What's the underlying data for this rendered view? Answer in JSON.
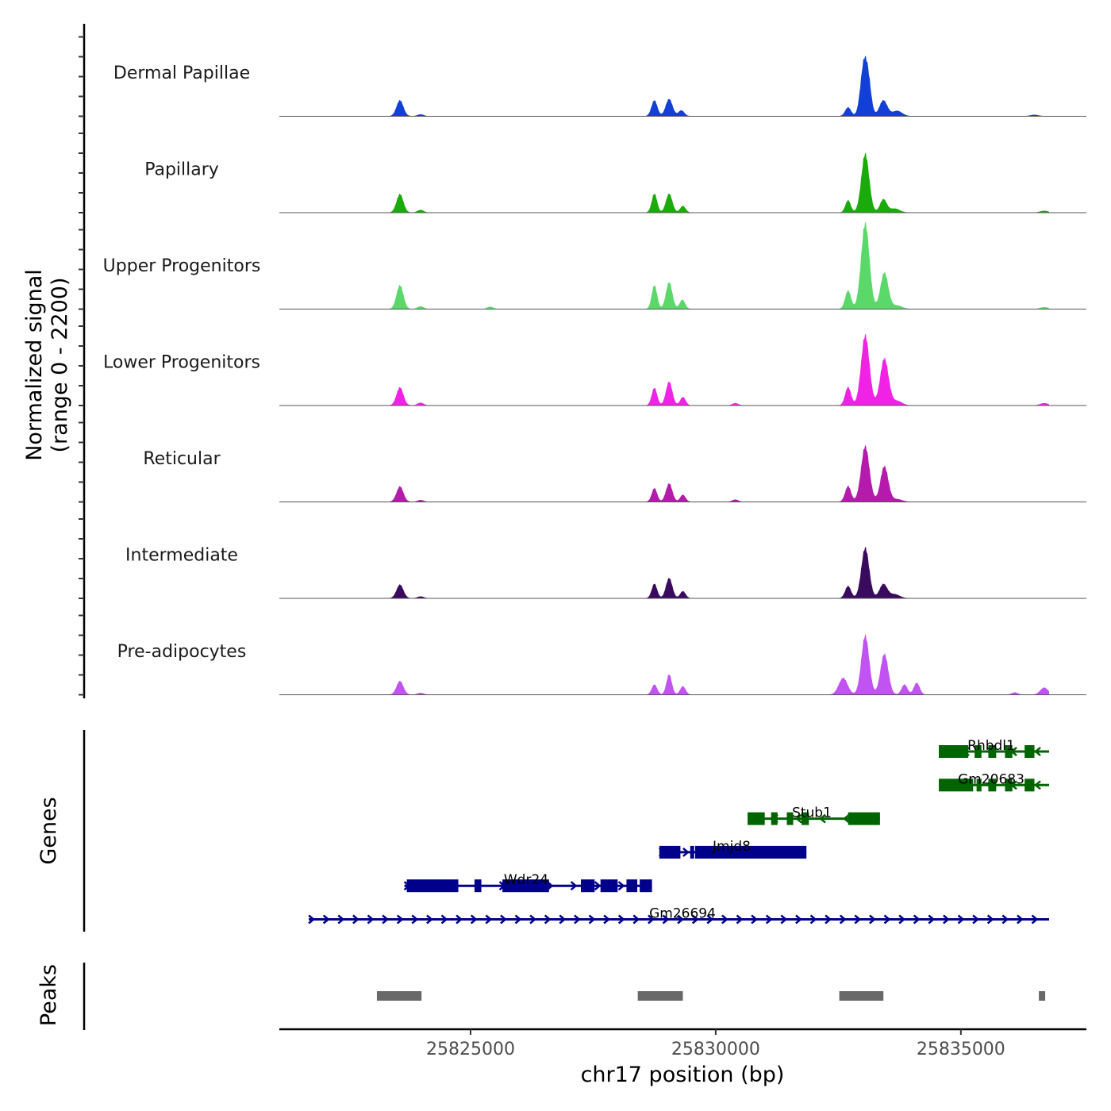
{
  "chart_data": {
    "type": "area",
    "title": "",
    "xlabel": "chr17 position (bp)",
    "ylabel": "Normalized signal\n(range 0 - 2200)",
    "ylabel_lines": [
      "Normalized signal",
      "(range 0 - 2200)"
    ],
    "ylim": [
      0,
      2200
    ],
    "xlim": [
      25821100,
      25837560
    ],
    "x_ticks": [
      25825000,
      25830000,
      25835000
    ],
    "x_tick_labels": [
      "25825000",
      "25830000",
      "25835000"
    ],
    "signal_extent": [
      25821100,
      25836800
    ],
    "series": [
      {
        "name": "Dermal Papillae",
        "color": "#1240d6",
        "peaks": [
          [
            25823560,
            360,
            70
          ],
          [
            25823980,
            40,
            60
          ],
          [
            25828750,
            360,
            60
          ],
          [
            25829050,
            390,
            70
          ],
          [
            25829300,
            130,
            60
          ],
          [
            25832700,
            200,
            60
          ],
          [
            25833020,
            1150,
            70
          ],
          [
            25833120,
            600,
            60
          ],
          [
            25833420,
            360,
            80
          ],
          [
            25833700,
            120,
            100
          ],
          [
            25836500,
            30,
            80
          ]
        ]
      },
      {
        "name": "Papillary",
        "color": "#1aab0a",
        "peaks": [
          [
            25823560,
            420,
            70
          ],
          [
            25823980,
            60,
            60
          ],
          [
            25828750,
            430,
            55
          ],
          [
            25829050,
            430,
            65
          ],
          [
            25829330,
            150,
            55
          ],
          [
            25832700,
            280,
            55
          ],
          [
            25833050,
            1340,
            80
          ],
          [
            25833420,
            300,
            70
          ],
          [
            25833650,
            90,
            100
          ],
          [
            25836700,
            40,
            80
          ]
        ]
      },
      {
        "name": "Upper Progenitors",
        "color": "#5ad96a",
        "peaks": [
          [
            25823560,
            540,
            70
          ],
          [
            25823980,
            60,
            60
          ],
          [
            25825400,
            50,
            60
          ],
          [
            25828750,
            540,
            55
          ],
          [
            25829050,
            610,
            65
          ],
          [
            25829320,
            210,
            55
          ],
          [
            25832700,
            420,
            60
          ],
          [
            25833050,
            1950,
            85
          ],
          [
            25833440,
            830,
            80
          ],
          [
            25833700,
            80,
            100
          ],
          [
            25836700,
            40,
            80
          ]
        ]
      },
      {
        "name": "Lower Progenitors",
        "color": "#ef22e6",
        "peaks": [
          [
            25823560,
            410,
            70
          ],
          [
            25823980,
            60,
            60
          ],
          [
            25828750,
            400,
            55
          ],
          [
            25829050,
            540,
            65
          ],
          [
            25829330,
            190,
            55
          ],
          [
            25830400,
            50,
            60
          ],
          [
            25832700,
            420,
            60
          ],
          [
            25833050,
            1600,
            85
          ],
          [
            25833440,
            1070,
            85
          ],
          [
            25833700,
            100,
            100
          ],
          [
            25836700,
            50,
            80
          ]
        ]
      },
      {
        "name": "Reticular",
        "color": "#b51aad",
        "peaks": [
          [
            25823560,
            350,
            70
          ],
          [
            25823980,
            40,
            60
          ],
          [
            25828750,
            310,
            55
          ],
          [
            25829050,
            420,
            65
          ],
          [
            25829330,
            160,
            55
          ],
          [
            25830400,
            50,
            60
          ],
          [
            25832700,
            360,
            60
          ],
          [
            25833050,
            1270,
            85
          ],
          [
            25833440,
            810,
            80
          ],
          [
            25833700,
            60,
            100
          ]
        ]
      },
      {
        "name": "Intermediate",
        "color": "#3a0a5e",
        "peaks": [
          [
            25823560,
            310,
            70
          ],
          [
            25823980,
            40,
            60
          ],
          [
            25828750,
            330,
            55
          ],
          [
            25829050,
            460,
            65
          ],
          [
            25829330,
            160,
            55
          ],
          [
            25832700,
            280,
            60
          ],
          [
            25833050,
            1150,
            80
          ],
          [
            25833420,
            320,
            80
          ],
          [
            25833650,
            90,
            100
          ]
        ]
      },
      {
        "name": "Pre-adipocytes",
        "color": "#c053f2",
        "peaks": [
          [
            25823560,
            310,
            70
          ],
          [
            25823980,
            40,
            60
          ],
          [
            25828750,
            230,
            55
          ],
          [
            25829050,
            460,
            55
          ],
          [
            25829330,
            190,
            55
          ],
          [
            25832600,
            380,
            90
          ],
          [
            25833050,
            1350,
            80
          ],
          [
            25833440,
            930,
            80
          ],
          [
            25833850,
            230,
            60
          ],
          [
            25834100,
            270,
            60
          ],
          [
            25836100,
            50,
            60
          ],
          [
            25836700,
            160,
            80
          ]
        ]
      }
    ],
    "genes": [
      {
        "name": "Rhbdl1",
        "strand": "-",
        "color": "#006400",
        "row": 0,
        "start": 25834550,
        "end": 25836800,
        "exons": [
          [
            25834550,
            25835150
          ],
          [
            25835280,
            25835420
          ],
          [
            25835560,
            25835720
          ],
          [
            25835900,
            25836050
          ],
          [
            25836300,
            25836500
          ]
        ]
      },
      {
        "name": "Gm20683",
        "strand": "-",
        "color": "#006400",
        "row": 1,
        "start": 25834550,
        "end": 25836800,
        "exons": [
          [
            25834550,
            25835250
          ],
          [
            25835320,
            25835420
          ],
          [
            25835560,
            25835720
          ],
          [
            25835900,
            25836050
          ],
          [
            25836300,
            25836500
          ]
        ]
      },
      {
        "name": "Stub1",
        "strand": "-",
        "color": "#006400",
        "row": 2,
        "start": 25830650,
        "end": 25833350,
        "exons": [
          [
            25830650,
            25831000
          ],
          [
            25831130,
            25831260
          ],
          [
            25831450,
            25831580
          ],
          [
            25831750,
            25831900
          ],
          [
            25832700,
            25833350
          ]
        ]
      },
      {
        "name": "Jmjd8",
        "strand": "+",
        "color": "#00008b",
        "row": 3,
        "start": 25828850,
        "end": 25831850,
        "exons": [
          [
            25828850,
            25829280
          ],
          [
            25829480,
            25829560
          ],
          [
            25829580,
            25831850
          ]
        ]
      },
      {
        "name": "Wdr24",
        "strand": "+",
        "color": "#00008b",
        "row": 4,
        "start": 25823650,
        "end": 25828700,
        "exons": [
          [
            25823700,
            25824750
          ],
          [
            25825080,
            25825220
          ],
          [
            25825650,
            25826600
          ],
          [
            25827250,
            25827530
          ],
          [
            25827650,
            25828000
          ],
          [
            25828180,
            25828400
          ],
          [
            25828450,
            25828700
          ]
        ]
      },
      {
        "name": "Gm26694",
        "strand": "+",
        "color": "#00008b",
        "row": 5,
        "start": 25821700,
        "end": 25836800,
        "exons": []
      }
    ],
    "peaks_track": {
      "label": "Peaks",
      "color": "#696969",
      "regions": [
        [
          25823090,
          25824000
        ],
        [
          25828410,
          25829330
        ],
        [
          25832520,
          25833420
        ],
        [
          25836590,
          25836710
        ]
      ]
    },
    "genes_track_label": "Genes"
  }
}
